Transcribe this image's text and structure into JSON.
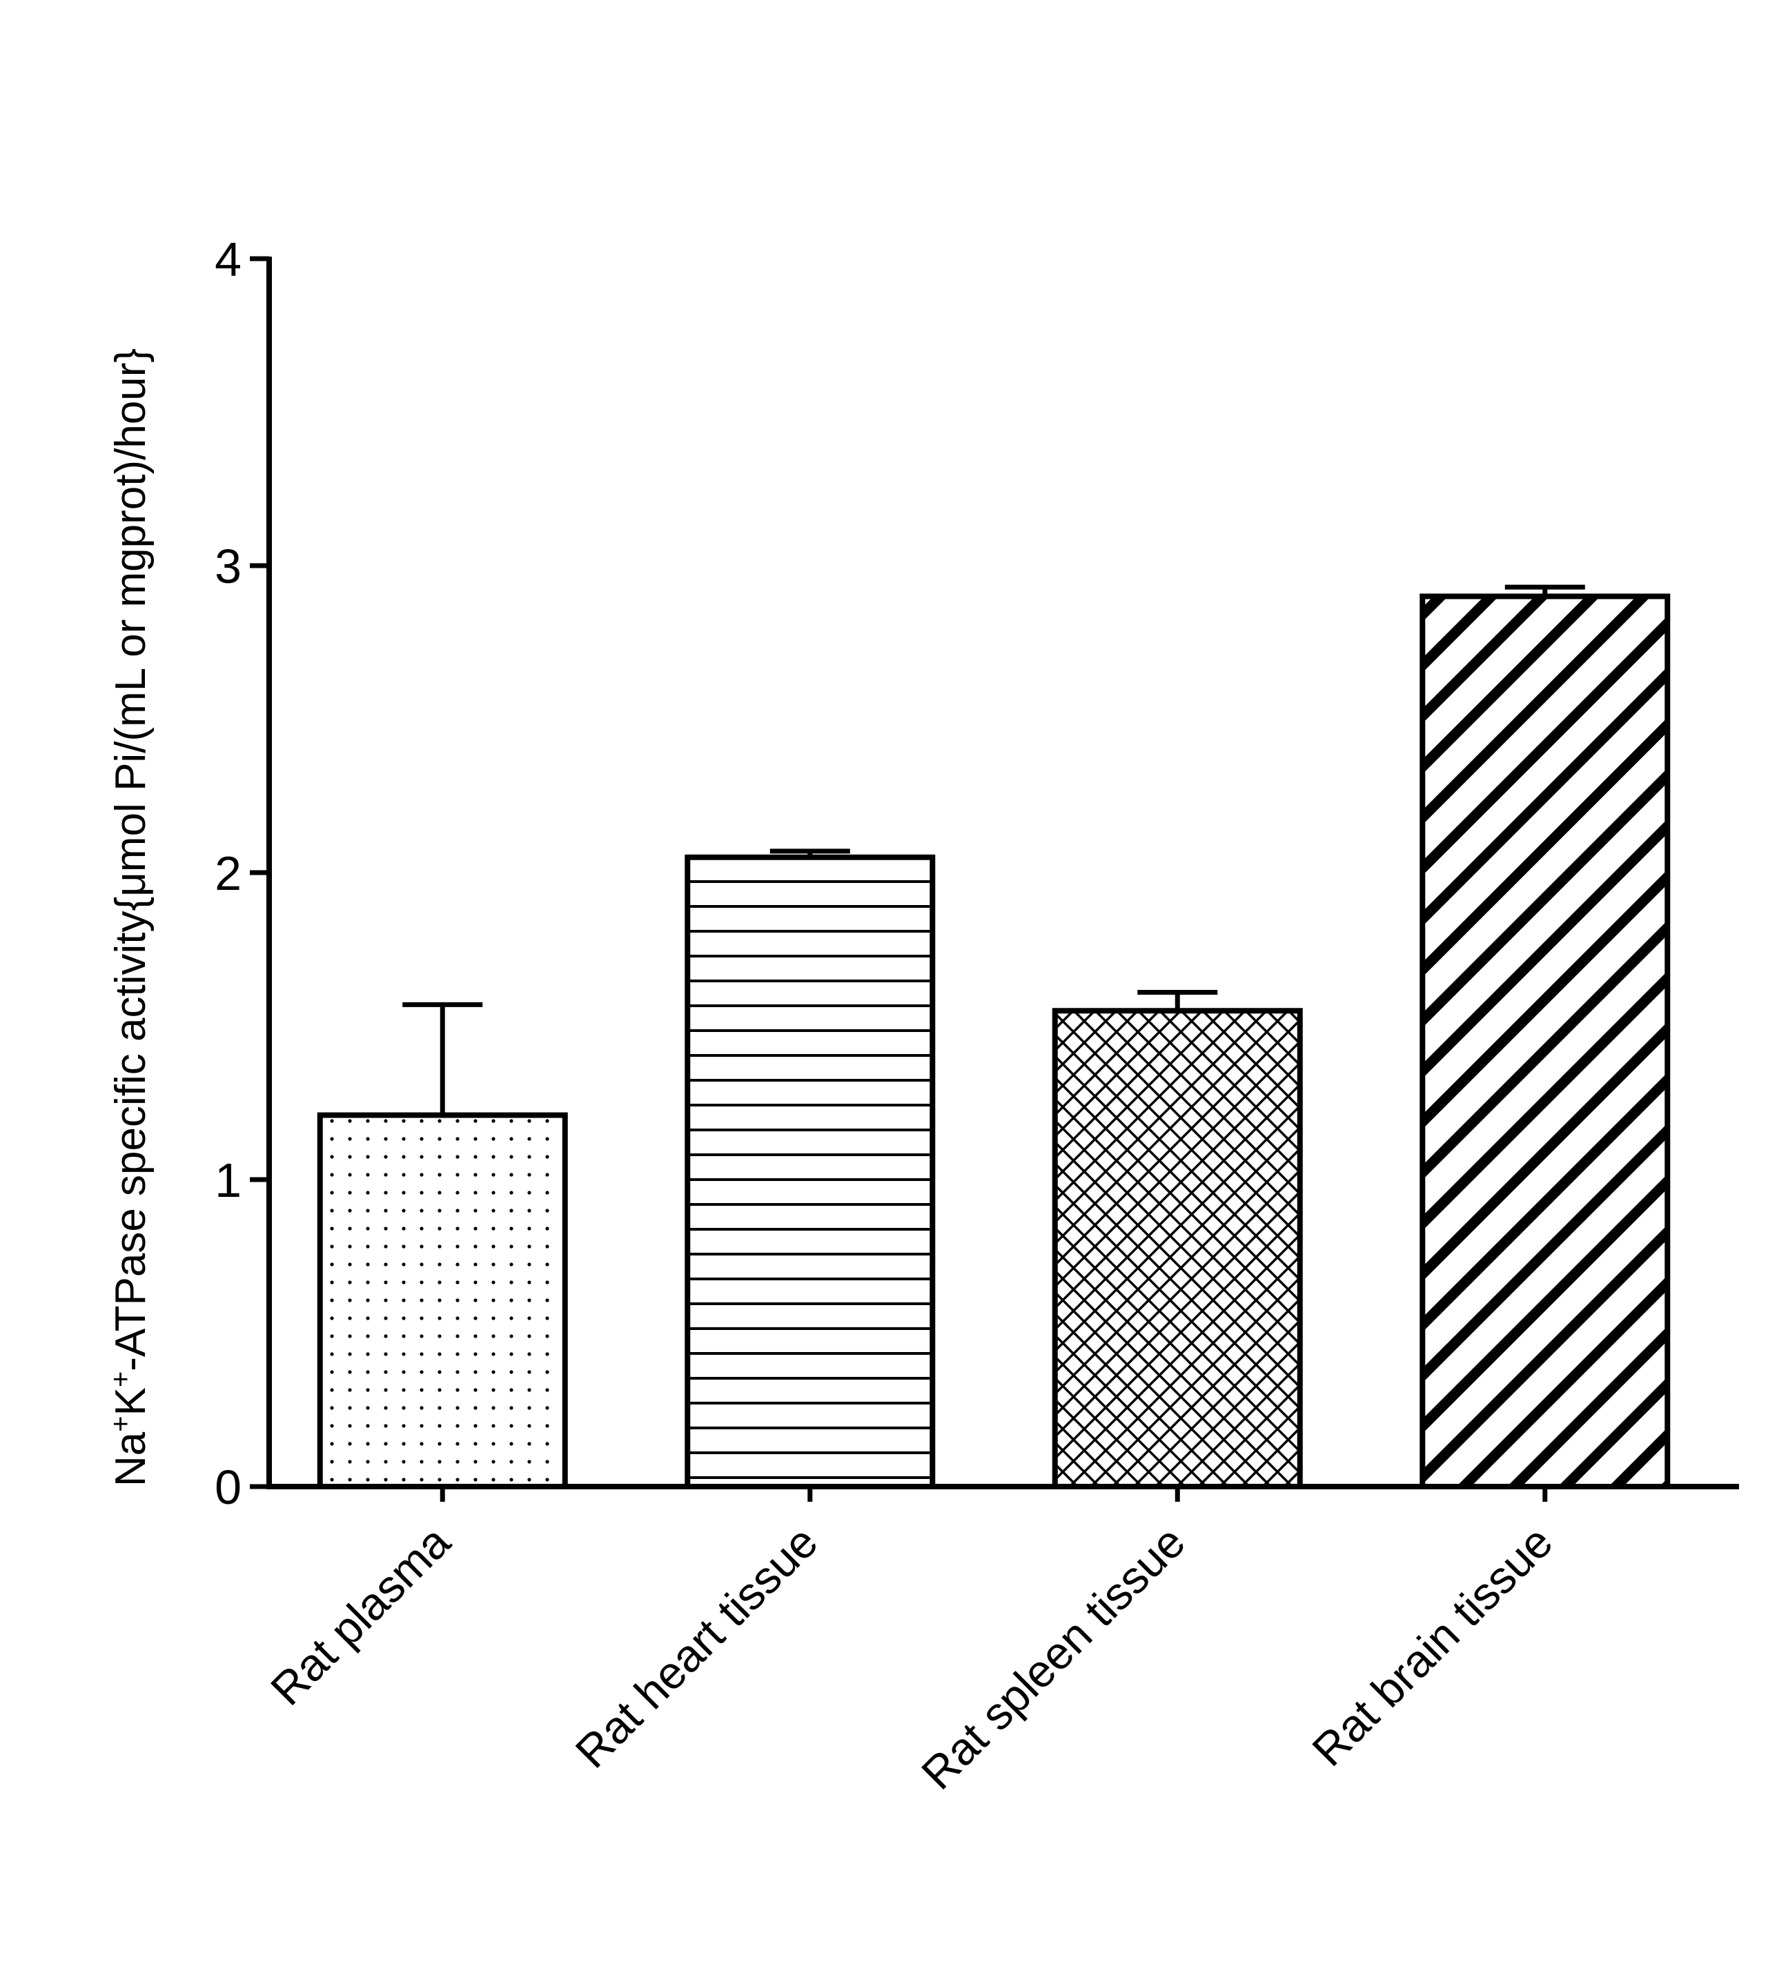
{
  "chart_data": {
    "type": "bar",
    "title": "",
    "xlabel": "",
    "ylabel": {
      "parts": [
        {
          "text": "Na",
          "sup": false
        },
        {
          "text": "+",
          "sup": true
        },
        {
          "text": "K",
          "sup": false
        },
        {
          "text": "+",
          "sup": true
        },
        {
          "text": "-ATPase specific activity{μmol Pi/(mL or mgprot)/hour}",
          "sup": false
        }
      ]
    },
    "ylim": [
      0,
      4
    ],
    "yticks": [
      0,
      1,
      2,
      3,
      4
    ],
    "categories": [
      "Rat plasma",
      "Rat heart tissue",
      "Rat spleen tissue",
      "Rat brain tissue"
    ],
    "values": [
      1.21,
      2.05,
      1.55,
      2.9
    ],
    "errors": [
      0.36,
      0.02,
      0.06,
      0.03
    ],
    "patterns": [
      "dots",
      "horizontal-lines",
      "crosshatch",
      "diagonal-lines"
    ],
    "colors": {
      "stroke": "#000000",
      "fill": "#ffffff"
    }
  }
}
